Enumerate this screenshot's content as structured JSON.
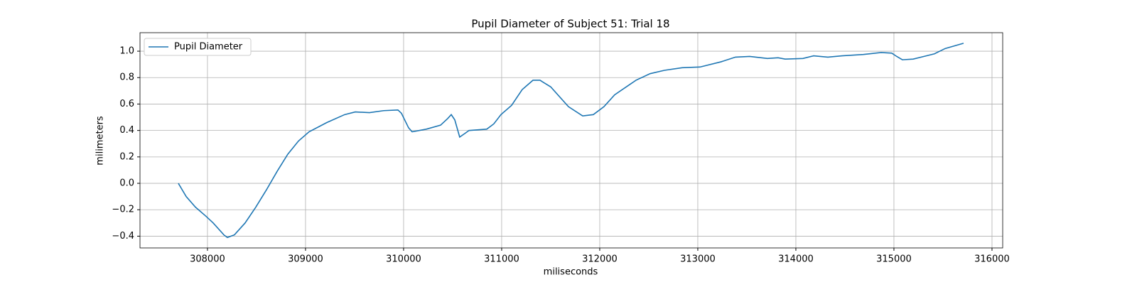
{
  "chart_data": {
    "type": "line",
    "title": "Pupil Diameter of Subject 51: Trial 18",
    "x_label": "miliseconds",
    "y_label": "milimeters",
    "x": [
      307703,
      307783,
      307877,
      307986,
      308058,
      308167,
      308203,
      308275,
      308384,
      308493,
      308601,
      308710,
      308819,
      308928,
      309036,
      309217,
      309399,
      309507,
      309652,
      309797,
      309942,
      309978,
      310051,
      310087,
      310232,
      310377,
      310449,
      310486,
      310522,
      310572,
      310630,
      310667,
      310848,
      310920,
      310993,
      311101,
      311210,
      311319,
      311391,
      311500,
      311681,
      311826,
      311935,
      312043,
      312152,
      312370,
      312514,
      312659,
      312841,
      313022,
      313239,
      313384,
      313529,
      313710,
      313819,
      313891,
      314072,
      314181,
      314326,
      314471,
      314688,
      314870,
      314978,
      315029,
      315087,
      315196,
      315304,
      315413,
      315522,
      315710
    ],
    "series": [
      {
        "name": "Pupil Diameter",
        "color": "#1f77b4",
        "values": [
          0.0,
          -0.1,
          -0.18,
          -0.25,
          -0.3,
          -0.39,
          -0.41,
          -0.39,
          -0.3,
          -0.18,
          -0.05,
          0.09,
          0.22,
          0.32,
          0.39,
          0.46,
          0.52,
          0.54,
          0.535,
          0.55,
          0.555,
          0.53,
          0.42,
          0.39,
          0.41,
          0.44,
          0.49,
          0.52,
          0.48,
          0.35,
          0.38,
          0.4,
          0.41,
          0.45,
          0.52,
          0.59,
          0.71,
          0.78,
          0.78,
          0.73,
          0.58,
          0.51,
          0.52,
          0.58,
          0.67,
          0.78,
          0.83,
          0.855,
          0.875,
          0.88,
          0.92,
          0.955,
          0.96,
          0.945,
          0.95,
          0.94,
          0.945,
          0.965,
          0.955,
          0.965,
          0.975,
          0.99,
          0.985,
          0.96,
          0.935,
          0.94,
          0.96,
          0.98,
          1.02,
          1.06
        ]
      }
    ],
    "xlim": [
      307312,
      316109
    ],
    "ylim": [
      -0.489,
      1.14
    ],
    "xticks": [
      308000,
      309000,
      310000,
      311000,
      312000,
      313000,
      314000,
      315000,
      316000
    ],
    "yticks": [
      {
        "value": -0.4,
        "label": "−0.4"
      },
      {
        "value": -0.2,
        "label": "−0.2"
      },
      {
        "value": 0.0,
        "label": "0.0"
      },
      0.2,
      0.4,
      0.6,
      0.8,
      {
        "value": 1.0,
        "label": "1.0"
      }
    ],
    "grid": true,
    "legend": "upper left"
  }
}
